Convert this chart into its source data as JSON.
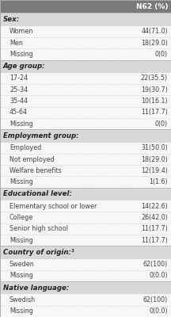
{
  "header": "N62 (%)",
  "sections": [
    {
      "title": "Sex:",
      "rows": [
        {
          "label": "Women",
          "value": "44(71.0)"
        },
        {
          "label": "Men",
          "value": "18(29.0)"
        },
        {
          "label": "Missing",
          "value": "0(0)"
        }
      ]
    },
    {
      "title": "Age group:",
      "rows": [
        {
          "label": "17-24",
          "value": "22(35.5)"
        },
        {
          "label": "25-34",
          "value": "19(30.7)"
        },
        {
          "label": "35-44",
          "value": "10(16.1)"
        },
        {
          "label": "45-64",
          "value": "11(17.7)"
        },
        {
          "label": "Missing",
          "value": "0(0)"
        }
      ]
    },
    {
      "title": "Employment group:",
      "rows": [
        {
          "label": "Employed",
          "value": "31(50.0)"
        },
        {
          "label": "Not employed",
          "value": "18(29.0)"
        },
        {
          "label": "Welfare benefits",
          "value": "12(19.4)"
        },
        {
          "label": "Missing",
          "value": "1(1.6)"
        }
      ]
    },
    {
      "title": "Educational level:",
      "rows": [
        {
          "label": "Elementary school or lower",
          "value": "14(22.6)"
        },
        {
          "label": "College",
          "value": "26(42.0)"
        },
        {
          "label": "Senior high school",
          "value": "11(17.7)"
        },
        {
          "label": "Missing",
          "value": "11(17.7)"
        }
      ]
    },
    {
      "title": "Country of origin:¹",
      "rows": [
        {
          "label": "Sweden",
          "value": "62(100)"
        },
        {
          "label": "Missing",
          "value": "0(0.0)"
        }
      ]
    },
    {
      "title": "Native language:",
      "rows": [
        {
          "label": "Swedish",
          "value": "62(100)"
        },
        {
          "label": "Missing",
          "value": "0(0.0)"
        }
      ]
    }
  ],
  "header_bg": "#7a7a7a",
  "header_text_color": "#ffffff",
  "section_title_bg": "#d8d8d8",
  "section_title_text_color": "#222222",
  "row_bg": "#f7f7f7",
  "row_text_color": "#444444",
  "separator_color": "#cccccc",
  "font_size": 5.8,
  "title_font_size": 6.2,
  "header_font_size": 6.5
}
